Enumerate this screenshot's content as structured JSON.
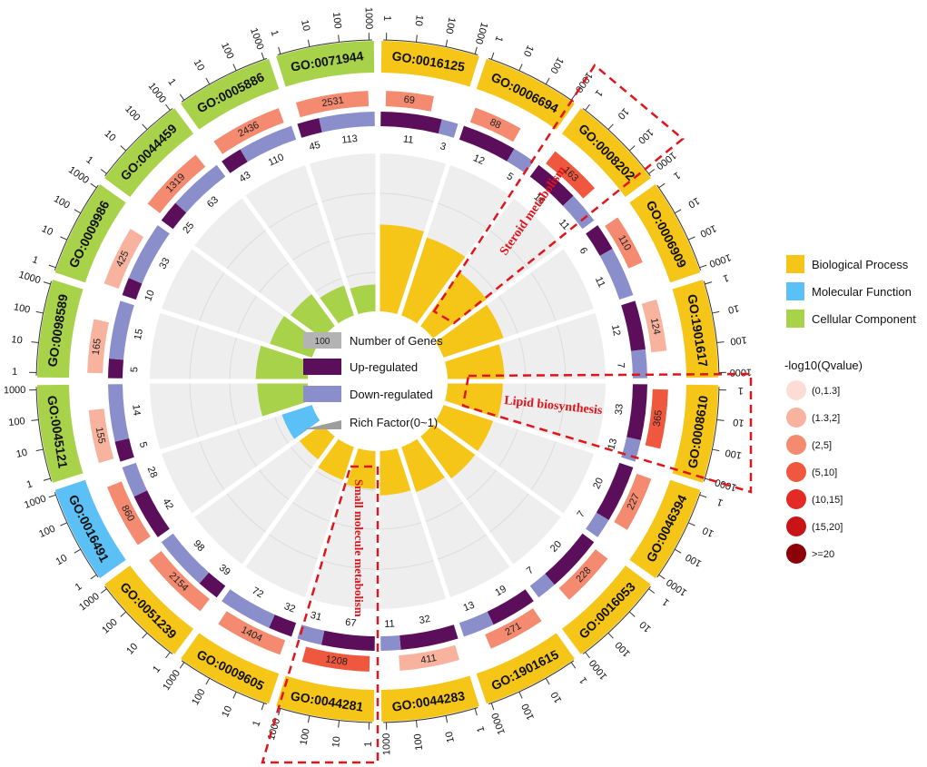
{
  "chart_data": {
    "type": "circular-go-enrichment",
    "terms": [
      {
        "id": "GO:0016125",
        "category": "BP",
        "total": 69,
        "up": 11,
        "down": 3,
        "rich": 0.55,
        "qcat": 2
      },
      {
        "id": "GO:0006694",
        "category": "BP",
        "total": 88,
        "up": 12,
        "down": 5,
        "rich": 0.52,
        "qcat": 2
      },
      {
        "id": "GO:0008202",
        "category": "BP",
        "total": 163,
        "up": 16,
        "down": 11,
        "rich": 0.42,
        "qcat": 3
      },
      {
        "id": "GO:0006909",
        "category": "BP",
        "total": 110,
        "up": 6,
        "down": 11,
        "rich": 0.4,
        "qcat": 2
      },
      {
        "id": "GO:1901617",
        "category": "BP",
        "total": 124,
        "up": 12,
        "down": 7,
        "rich": 0.36,
        "qcat": 1
      },
      {
        "id": "GO:0008610",
        "category": "BP",
        "total": 365,
        "up": 33,
        "down": 13,
        "rich": 0.35,
        "qcat": 3
      },
      {
        "id": "GO:0046394",
        "category": "BP",
        "total": 227,
        "up": 20,
        "down": 7,
        "rich": 0.33,
        "qcat": 2
      },
      {
        "id": "GO:0016053",
        "category": "BP",
        "total": 228,
        "up": 20,
        "down": 7,
        "rich": 0.33,
        "qcat": 2
      },
      {
        "id": "GO:1901615",
        "category": "BP",
        "total": 271,
        "up": 19,
        "down": 13,
        "rich": 0.3,
        "qcat": 2
      },
      {
        "id": "GO:0044283",
        "category": "BP",
        "total": 411,
        "up": 32,
        "down": 11,
        "rich": 0.28,
        "qcat": 1
      },
      {
        "id": "GO:0044281",
        "category": "BP",
        "total": 1208,
        "up": 67,
        "down": 31,
        "rich": 0.24,
        "qcat": 3
      },
      {
        "id": "GO:0009605",
        "category": "BP",
        "total": 1404,
        "up": 32,
        "down": 72,
        "rich": 0.22,
        "qcat": 2
      },
      {
        "id": "GO:0051239",
        "category": "BP",
        "total": 2154,
        "up": 39,
        "down": 98,
        "rich": 0.18,
        "qcat": 2
      },
      {
        "id": "GO:0016491",
        "category": "MF",
        "total": 860,
        "up": 42,
        "down": 28,
        "rich": 0.2,
        "qcat": 2
      },
      {
        "id": "GO:0045121",
        "category": "CC",
        "total": 155,
        "up": 5,
        "down": 14,
        "rich": 0.32,
        "qcat": 1
      },
      {
        "id": "GO:0098589",
        "category": "CC",
        "total": 165,
        "up": 5,
        "down": 15,
        "rich": 0.33,
        "qcat": 1
      },
      {
        "id": "GO:0009986",
        "category": "CC",
        "total": 425,
        "up": 10,
        "down": 33,
        "rich": 0.28,
        "qcat": 1
      },
      {
        "id": "GO:0044459",
        "category": "CC",
        "total": 1319,
        "up": 25,
        "down": 63,
        "rich": 0.25,
        "qcat": 2
      },
      {
        "id": "GO:0005886",
        "category": "CC",
        "total": 2436,
        "up": 43,
        "down": 110,
        "rich": 0.2,
        "qcat": 2
      },
      {
        "id": "GO:0071944",
        "category": "CC",
        "total": 2531,
        "up": 45,
        "down": 113,
        "rich": 0.17,
        "qcat": 2
      }
    ],
    "scale_labels": [
      "1",
      "10",
      "100",
      "1000"
    ],
    "categories": {
      "BP": {
        "name": "Biological Process",
        "color": "#f5c518"
      },
      "MF": {
        "name": "Molecular Function",
        "color": "#5bc0f5"
      },
      "CC": {
        "name": "Cellular Component",
        "color": "#a8d24a"
      }
    },
    "up_color": "#5b0f5a",
    "down_color": "#8a8fcc",
    "qvalue_legend": {
      "title": "-log10(Qvalue)",
      "bins": [
        "(0,1.3]",
        "(1.3,2]",
        "(2,5]",
        "(5,10]",
        "(10,15]",
        "(15,20]",
        ">=20"
      ],
      "colors": [
        "#fcdcd4",
        "#f8b39e",
        "#f48a6f",
        "#f0573f",
        "#e42a25",
        "#c81417",
        "#8c0007"
      ]
    },
    "center_legend": {
      "number_of_genes": {
        "sample": "100",
        "label": "Number of Genes"
      },
      "up": "Up-regulated",
      "down": "Down-regulated",
      "rich": "Rich Factor(0~1)"
    },
    "annotations": [
      {
        "label": "Steroid metabolism"
      },
      {
        "label": "Lipid biosynthesis"
      },
      {
        "label": "Small molecule metabolism"
      }
    ]
  }
}
